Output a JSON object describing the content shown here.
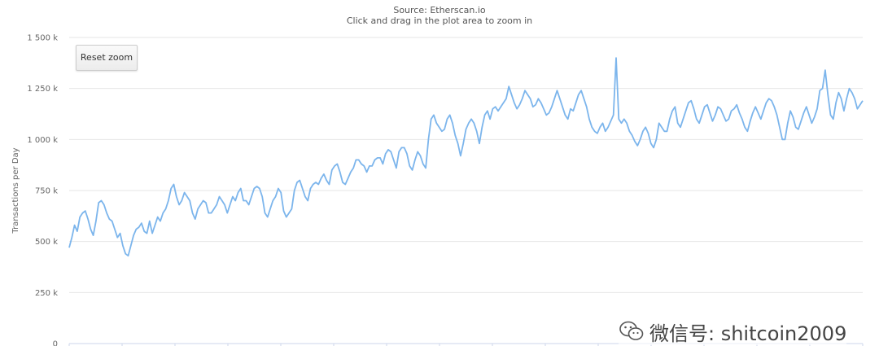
{
  "chart_data": {
    "type": "line",
    "subtitle_1": "Source: Etherscan.io",
    "subtitle_2": "Click and drag in the plot area to zoom in",
    "ylabel": "Transactions per Day",
    "ylim": [
      0,
      1500000
    ],
    "y_ticks": [
      {
        "value": 0,
        "label": "0"
      },
      {
        "value": 250000,
        "label": "250 k"
      },
      {
        "value": 500000,
        "label": "500 k"
      },
      {
        "value": 750000,
        "label": "750 k"
      },
      {
        "value": 1000000,
        "label": "1 000 k"
      },
      {
        "value": 1250000,
        "label": "1 250 k"
      },
      {
        "value": 1500000,
        "label": "1 500 k"
      }
    ],
    "x_tick_count": 16,
    "grid": true,
    "series_color": "#7cb5ec",
    "series": [
      {
        "values": [
          470,
          520,
          580,
          550,
          620,
          640,
          650,
          610,
          560,
          530,
          600,
          690,
          700,
          680,
          640,
          610,
          600,
          560,
          520,
          540,
          480,
          440,
          430,
          480,
          530,
          560,
          570,
          590,
          550,
          540,
          600,
          540,
          580,
          620,
          600,
          640,
          660,
          700,
          760,
          780,
          720,
          680,
          700,
          740,
          720,
          700,
          640,
          610,
          660,
          680,
          700,
          690,
          640,
          640,
          660,
          680,
          720,
          700,
          680,
          640,
          680,
          720,
          700,
          740,
          760,
          700,
          700,
          680,
          720,
          760,
          770,
          760,
          720,
          640,
          620,
          660,
          700,
          720,
          760,
          740,
          650,
          620,
          640,
          660,
          750,
          790,
          800,
          760,
          720,
          700,
          760,
          780,
          790,
          780,
          810,
          830,
          800,
          780,
          850,
          870,
          880,
          840,
          790,
          780,
          810,
          840,
          860,
          900,
          900,
          880,
          870,
          840,
          870,
          870,
          900,
          910,
          910,
          880,
          930,
          950,
          940,
          900,
          860,
          940,
          960,
          960,
          930,
          870,
          850,
          900,
          940,
          920,
          880,
          860,
          1000,
          1100,
          1120,
          1080,
          1060,
          1040,
          1050,
          1100,
          1120,
          1080,
          1020,
          980,
          920,
          980,
          1050,
          1080,
          1100,
          1080,
          1040,
          980,
          1060,
          1120,
          1140,
          1100,
          1150,
          1160,
          1140,
          1160,
          1180,
          1200,
          1260,
          1220,
          1180,
          1150,
          1170,
          1200,
          1240,
          1220,
          1200,
          1160,
          1170,
          1200,
          1180,
          1150,
          1120,
          1130,
          1160,
          1200,
          1240,
          1200,
          1160,
          1120,
          1100,
          1150,
          1140,
          1180,
          1220,
          1240,
          1200,
          1160,
          1100,
          1060,
          1040,
          1030,
          1060,
          1080,
          1040,
          1060,
          1090,
          1120,
          1400,
          1100,
          1080,
          1100,
          1080,
          1040,
          1020,
          990,
          970,
          1000,
          1040,
          1060,
          1030,
          980,
          960,
          1000,
          1080,
          1060,
          1040,
          1040,
          1100,
          1140,
          1160,
          1080,
          1060,
          1100,
          1140,
          1180,
          1190,
          1150,
          1100,
          1080,
          1120,
          1160,
          1170,
          1130,
          1090,
          1120,
          1160,
          1150,
          1120,
          1090,
          1100,
          1140,
          1150,
          1170,
          1130,
          1100,
          1060,
          1040,
          1090,
          1130,
          1160,
          1130,
          1100,
          1140,
          1180,
          1200,
          1190,
          1160,
          1120,
          1060,
          1000,
          1000,
          1080,
          1140,
          1110,
          1060,
          1050,
          1090,
          1130,
          1160,
          1120,
          1080,
          1110,
          1150,
          1240,
          1250,
          1340,
          1220,
          1120,
          1100,
          1180,
          1230,
          1200,
          1140,
          1200,
          1250,
          1230,
          1200,
          1150,
          1170,
          1190
        ]
      }
    ]
  },
  "toolbar": {
    "reset_label": "Reset zoom"
  },
  "watermark": {
    "text": "微信号: shitcoin2009",
    "icon": "wechat-icon"
  }
}
